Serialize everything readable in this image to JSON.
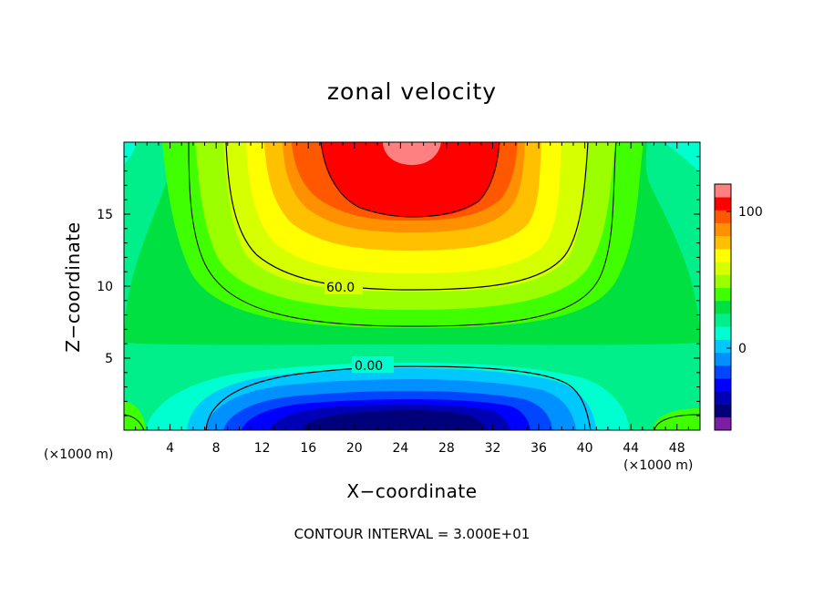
{
  "chart_data": {
    "type": "heatmap",
    "title": "zonal velocity",
    "xlabel": "X−coordinate",
    "ylabel": "Z−coordinate",
    "x_unit": "(×1000 m)",
    "footer": "CONTOUR INTERVAL = 3.000E+01",
    "xlim": [
      0,
      50
    ],
    "ylim": [
      0,
      20
    ],
    "x_ticks": [
      4,
      8,
      12,
      16,
      20,
      24,
      28,
      32,
      36,
      40,
      44,
      48
    ],
    "y_ticks": [
      5,
      10,
      15
    ],
    "colorbar": {
      "range": [
        -60,
        120
      ],
      "tick_values": [
        0,
        100
      ],
      "tick_labels": [
        "0",
        "100"
      ],
      "colors": [
        "#7a1fa2",
        "#00007a",
        "#0000b4",
        "#0000ff",
        "#0046ff",
        "#0090ff",
        "#00c8ff",
        "#00ffd0",
        "#00ef8a",
        "#00e040",
        "#40ff00",
        "#9bff00",
        "#d6ff00",
        "#ffff00",
        "#ffc000",
        "#ff9000",
        "#ff5800",
        "#ff0000",
        "#ff8080"
      ]
    },
    "contour_labels": [
      {
        "text": "60.0",
        "x": 18.8,
        "z": 9.9
      },
      {
        "text": "0.00",
        "x": 21.6,
        "z": 4.5
      }
    ]
  }
}
